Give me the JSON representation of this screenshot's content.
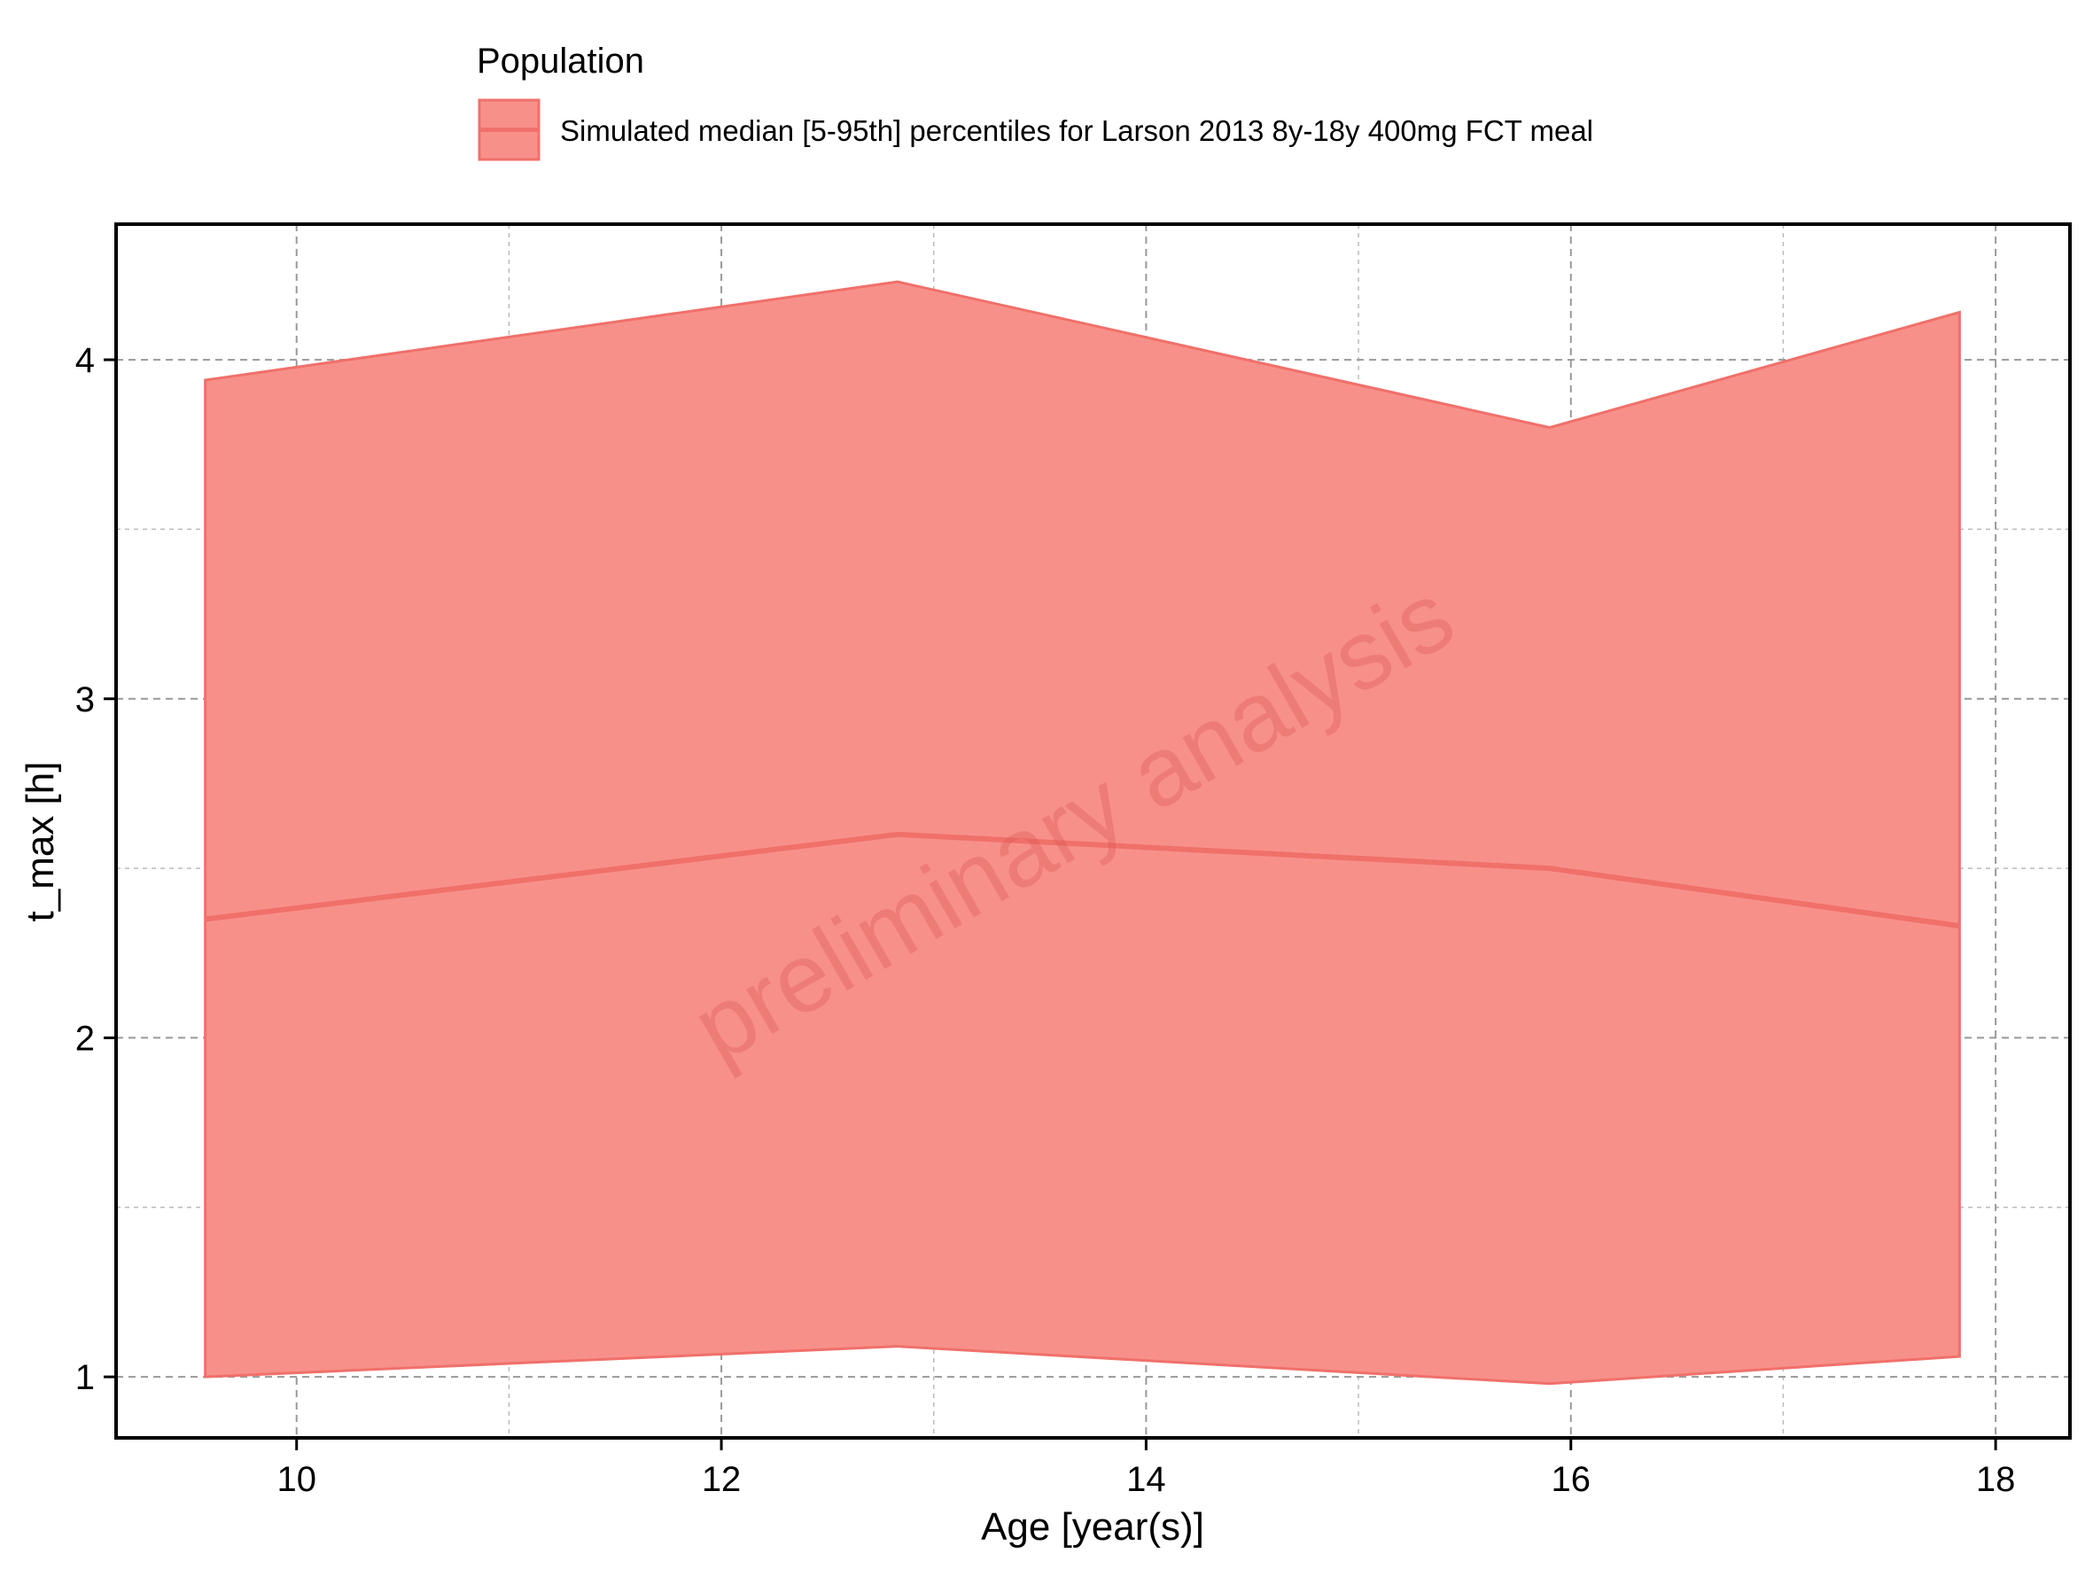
{
  "legend": {
    "title": "Population",
    "entries": [
      "Simulated median [5-95th] percentiles for Larson 2013 8y-18y 400mg FCT meal"
    ]
  },
  "watermark": "preliminary analysis",
  "colors": {
    "band_fill": "#f8908a",
    "line": "#f0706a",
    "grid": "#bbbbbb",
    "axis": "#000000"
  },
  "chart_data": {
    "type": "area",
    "xlabel": "Age [year(s)]",
    "ylabel": "t_max [h]",
    "xlim": [
      9.15,
      18.35
    ],
    "ylim": [
      0.82,
      4.4
    ],
    "xticks": [
      10,
      12,
      14,
      16,
      18
    ],
    "yticks": [
      1,
      2,
      3,
      4
    ],
    "grid": true,
    "legend_position": "top",
    "series": [
      {
        "name": "Simulated median [5-95th] percentiles for Larson 2013 8y-18y 400mg FCT meal",
        "x": [
          9.57,
          12.83,
          15.9,
          17.83
        ],
        "median": [
          2.35,
          2.6,
          2.5,
          2.33
        ],
        "p5": [
          1.0,
          1.09,
          0.98,
          1.06
        ],
        "p95": [
          3.94,
          4.23,
          3.8,
          4.14
        ]
      }
    ]
  }
}
